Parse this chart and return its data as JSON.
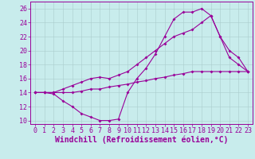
{
  "xlabel": "Windchill (Refroidissement éolien,°C)",
  "xlim": [
    -0.5,
    23.5
  ],
  "ylim": [
    9.5,
    27.0
  ],
  "xticks": [
    0,
    1,
    2,
    3,
    4,
    5,
    6,
    7,
    8,
    9,
    10,
    11,
    12,
    13,
    14,
    15,
    16,
    17,
    18,
    19,
    20,
    21,
    22,
    23
  ],
  "yticks": [
    10,
    12,
    14,
    16,
    18,
    20,
    22,
    24,
    26
  ],
  "bg_color": "#c8 ecec",
  "line_color": "#990099",
  "grid_color": "#aacccc",
  "line1_x": [
    0,
    1,
    2,
    3,
    4,
    5,
    6,
    7,
    8,
    9,
    10,
    11,
    12,
    13,
    14,
    15,
    16,
    17,
    18,
    19,
    20,
    21,
    22,
    23
  ],
  "line1_y": [
    14,
    14,
    13.8,
    12.8,
    12,
    11,
    10.5,
    10,
    10,
    10.2,
    14,
    16,
    17.5,
    19.5,
    22,
    24.5,
    25.5,
    25.5,
    26,
    25,
    22,
    19,
    18,
    17
  ],
  "line2_x": [
    0,
    1,
    2,
    3,
    4,
    5,
    6,
    7,
    8,
    9,
    10,
    11,
    12,
    13,
    14,
    15,
    16,
    17,
    18,
    19,
    20,
    21,
    22,
    23
  ],
  "line2_y": [
    14,
    14,
    14,
    14.5,
    15,
    15.5,
    16,
    16.2,
    16.0,
    16.5,
    17,
    18,
    19,
    20,
    21,
    22,
    22.5,
    23,
    24,
    25,
    22,
    20,
    19,
    17
  ],
  "line3_x": [
    0,
    1,
    2,
    3,
    4,
    5,
    6,
    7,
    8,
    9,
    10,
    11,
    12,
    13,
    14,
    15,
    16,
    17,
    18,
    19,
    20,
    21,
    22,
    23
  ],
  "line3_y": [
    14,
    14,
    14,
    14,
    14,
    14.2,
    14.5,
    14.5,
    14.8,
    15,
    15.2,
    15.5,
    15.7,
    16,
    16.2,
    16.5,
    16.7,
    17,
    17,
    17,
    17,
    17,
    17,
    17
  ],
  "font_color": "#990099",
  "tick_fontsize": 6,
  "label_fontsize": 7
}
